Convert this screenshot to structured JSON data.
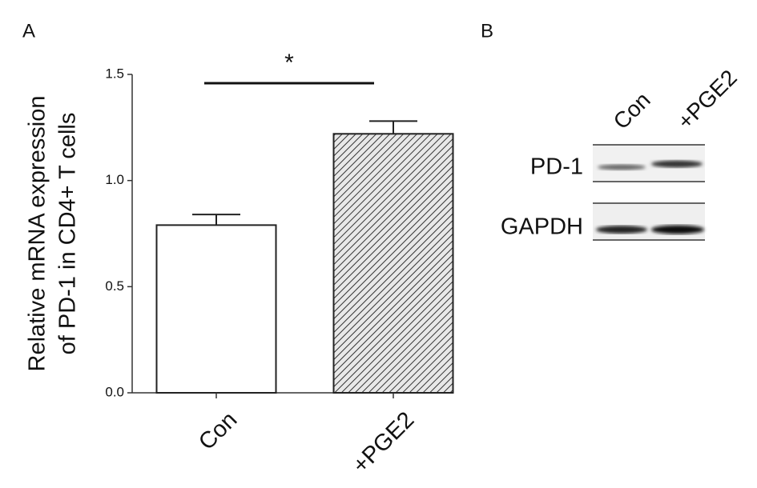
{
  "chart_data": {
    "type": "bar",
    "panel_label": "A",
    "y_label": [
      "Relative mRNA expression",
      "of PD-1 in CD4+ T cells"
    ],
    "categories": [
      "Con",
      "+PGE2"
    ],
    "values": [
      0.79,
      1.22
    ],
    "errors": [
      0.05,
      0.06
    ],
    "patterns": [
      "none",
      "hatch"
    ],
    "ylim": [
      0,
      1.5
    ],
    "yticks": [
      {
        "value": 0,
        "label": "0.0"
      },
      0.5,
      {
        "value": 1,
        "label": "1.0"
      },
      1.5
    ],
    "grid": false,
    "annotation": "*"
  },
  "blot": {
    "panel_label": "B",
    "lanes": [
      "Con",
      "+PGE2"
    ],
    "rows": [
      "PD-1",
      "GAPDH"
    ]
  }
}
